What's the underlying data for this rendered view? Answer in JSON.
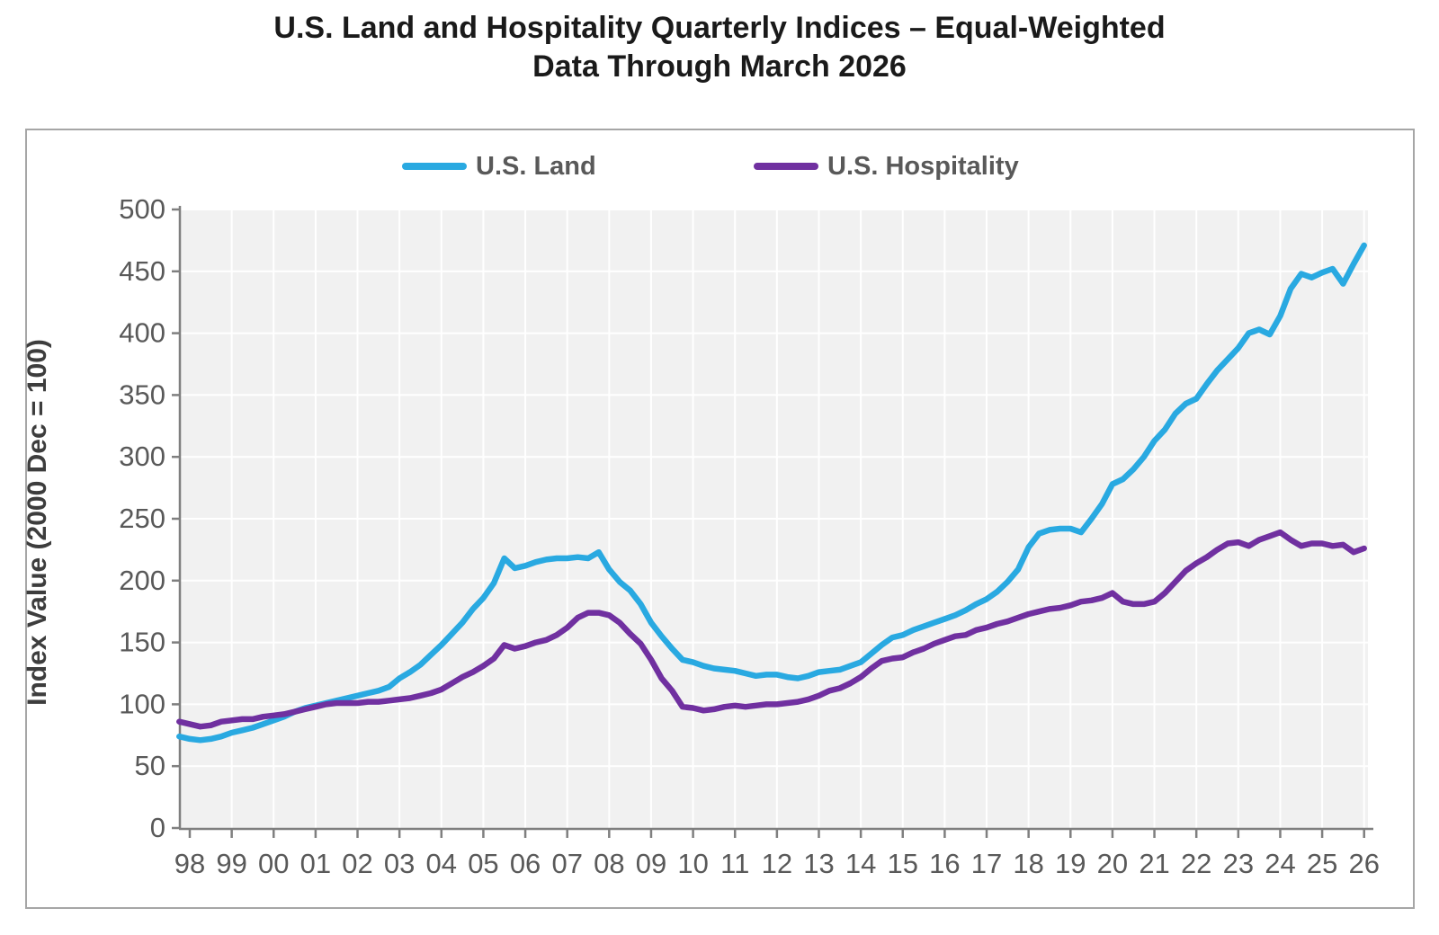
{
  "title": {
    "line1": "U.S. Land and Hospitality Quarterly Indices – Equal-Weighted",
    "line2": "Data Through March 2026"
  },
  "legend": {
    "entries": [
      {
        "label": "U.S. Land",
        "color": "#29a9e1"
      },
      {
        "label": "U.S. Hospitality",
        "color": "#7030a0"
      }
    ]
  },
  "chart_data": {
    "type": "line",
    "title": "U.S. Land and Hospitality Quarterly Indices – Equal-Weighted, Data Through March 2026",
    "ylabel": "Index Value (2000 Dec = 100)",
    "xlabel": "",
    "ylim": [
      0,
      500
    ],
    "y_ticks": [
      0,
      50,
      100,
      150,
      200,
      250,
      300,
      350,
      400,
      450,
      500
    ],
    "x_tick_labels": [
      "98",
      "99",
      "00",
      "01",
      "02",
      "03",
      "04",
      "05",
      "06",
      "07",
      "08",
      "09",
      "10",
      "11",
      "12",
      "13",
      "14",
      "15",
      "16",
      "17",
      "18",
      "19",
      "20",
      "21",
      "22",
      "23",
      "24",
      "25",
      "26"
    ],
    "x_tick_years": [
      1998,
      1999,
      2000,
      2001,
      2002,
      2003,
      2004,
      2005,
      2006,
      2007,
      2008,
      2009,
      2010,
      2011,
      2012,
      2013,
      2014,
      2015,
      2016,
      2017,
      2018,
      2019,
      2020,
      2021,
      2022,
      2023,
      2024,
      2025,
      2026
    ],
    "x_start": 1997.75,
    "x_step": 0.25,
    "frequency": "quarterly",
    "grid": true,
    "legend_position": "top-center",
    "plot_bg": "#f1f1f1",
    "gridline_color": "#ffffff",
    "axis_color": "#7f7f7f",
    "tick_label_color": "#595959",
    "series": [
      {
        "name": "U.S. Land",
        "color": "#29a9e1",
        "values": [
          74,
          72,
          71,
          72,
          74,
          77,
          79,
          81,
          84,
          87,
          90,
          94,
          97,
          99,
          101,
          103,
          105,
          107,
          109,
          111,
          114,
          121,
          126,
          132,
          140,
          148,
          157,
          166,
          177,
          186,
          198,
          218,
          210,
          212,
          215,
          217,
          218,
          218,
          219,
          218,
          223,
          209,
          199,
          192,
          181,
          166,
          155,
          145,
          136,
          134,
          131,
          129,
          128,
          127,
          125,
          123,
          124,
          124,
          122,
          121,
          123,
          126,
          127,
          128,
          131,
          134,
          141,
          148,
          154,
          156,
          160,
          163,
          166,
          169,
          172,
          176,
          181,
          185,
          191,
          199,
          209,
          227,
          238,
          241,
          242,
          242,
          239,
          250,
          262,
          278,
          282,
          290,
          300,
          313,
          322,
          335,
          343,
          347,
          359,
          370,
          379,
          388,
          400,
          403,
          399,
          414,
          436,
          448,
          445,
          449,
          452,
          440,
          456,
          471
        ]
      },
      {
        "name": "U.S. Hospitality",
        "color": "#7030a0",
        "values": [
          86,
          84,
          82,
          83,
          86,
          87,
          88,
          88,
          90,
          91,
          92,
          94,
          96,
          98,
          100,
          101,
          101,
          101,
          102,
          102,
          103,
          104,
          105,
          107,
          109,
          112,
          117,
          122,
          126,
          131,
          137,
          148,
          145,
          147,
          150,
          152,
          156,
          162,
          170,
          174,
          174,
          172,
          166,
          157,
          149,
          136,
          121,
          111,
          98,
          97,
          95,
          96,
          98,
          99,
          98,
          99,
          100,
          100,
          101,
          102,
          104,
          107,
          111,
          113,
          117,
          122,
          129,
          135,
          137,
          138,
          142,
          145,
          149,
          152,
          155,
          156,
          160,
          162,
          165,
          167,
          170,
          173,
          175,
          177,
          178,
          180,
          183,
          184,
          186,
          190,
          183,
          181,
          181,
          183,
          190,
          199,
          208,
          214,
          219,
          225,
          230,
          231,
          228,
          233,
          236,
          239,
          233,
          228,
          230,
          230,
          228,
          229,
          223,
          226
        ]
      }
    ]
  }
}
